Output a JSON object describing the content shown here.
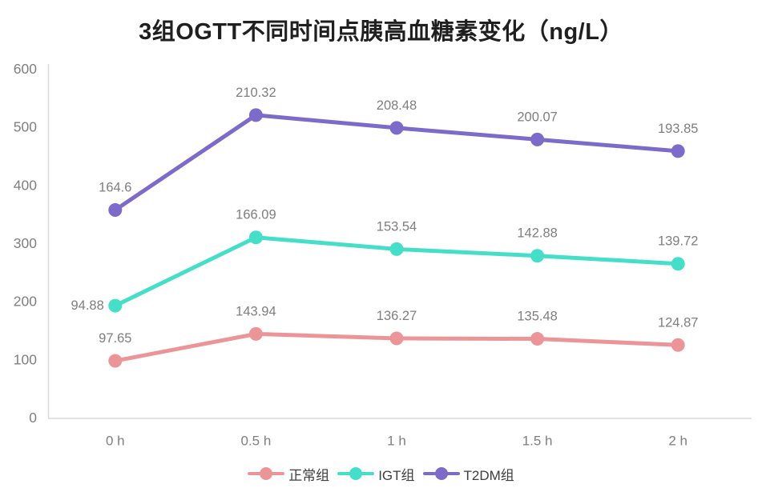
{
  "chart_data": {
    "type": "line",
    "stacked": true,
    "title": "3组OGTT不同时间点胰高血糖素变化（ng/L）",
    "x_categories": [
      "0 h",
      "0.5 h",
      "1 h",
      "1.5 h",
      "2 h"
    ],
    "series": [
      {
        "key": "normal",
        "name": "正常组",
        "color": "#EC9598",
        "values": [
          97.65,
          143.94,
          136.27,
          135.48,
          124.87
        ],
        "label_positions": [
          "above",
          "above",
          "above",
          "above",
          "above"
        ]
      },
      {
        "key": "igt",
        "name": "IGT组",
        "color": "#45DEC8",
        "values": [
          94.88,
          166.09,
          153.54,
          142.88,
          139.72
        ],
        "label_positions": [
          "left",
          "above",
          "above",
          "above",
          "above"
        ]
      },
      {
        "key": "t2dm",
        "name": "T2DM组",
        "color": "#7C6BC8",
        "values": [
          164.6,
          210.32,
          208.48,
          200.07,
          193.85
        ],
        "label_positions": [
          "above",
          "above",
          "above",
          "above",
          "above"
        ]
      }
    ],
    "ylim": [
      0,
      600
    ],
    "yticks": [
      0,
      100,
      200,
      300,
      400,
      500,
      600
    ],
    "grid": false,
    "legend_position": "bottom",
    "xlabel": "",
    "ylabel": ""
  },
  "colors": {
    "axis_line": "#D9D9D9",
    "tick_text": "#7F7F7F",
    "data_label_text": "#7F7F7F",
    "legend_text": "#3D3D3D",
    "title_text": "#1F1F1F",
    "background": "#FFFFFF"
  }
}
